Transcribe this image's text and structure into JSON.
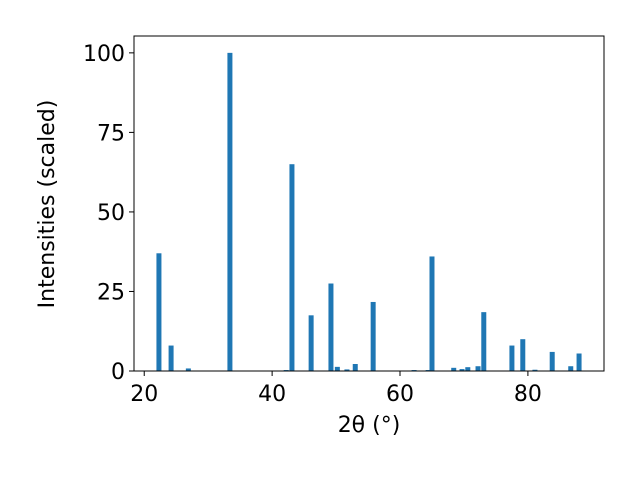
{
  "chart_data": {
    "type": "bar",
    "xlabel": "2θ (°)",
    "ylabel": "Intensities (scaled)",
    "x": [
      22.3,
      24.2,
      26.9,
      33.4,
      42.2,
      43.1,
      46.1,
      49.2,
      50.2,
      51.7,
      53.0,
      55.8,
      62.2,
      64.4,
      65.0,
      68.4,
      69.7,
      70.6,
      72.2,
      73.1,
      77.5,
      79.2,
      81.1,
      83.8,
      86.7,
      88.0
    ],
    "values": [
      37,
      8,
      0.8,
      100,
      0.3,
      65,
      17.5,
      27.5,
      1.3,
      0.5,
      2.2,
      21.7,
      0.3,
      0.3,
      36,
      1,
      0.6,
      1.2,
      1.5,
      18.5,
      8,
      10,
      0.4,
      6,
      1.5,
      5.5
    ],
    "color": "#1f77b4",
    "xlim": [
      18.4,
      91.9
    ],
    "ylim": [
      0,
      105.3
    ],
    "xticks": [
      20,
      40,
      60,
      80
    ],
    "yticks": [
      0,
      25,
      50,
      75,
      100
    ]
  }
}
